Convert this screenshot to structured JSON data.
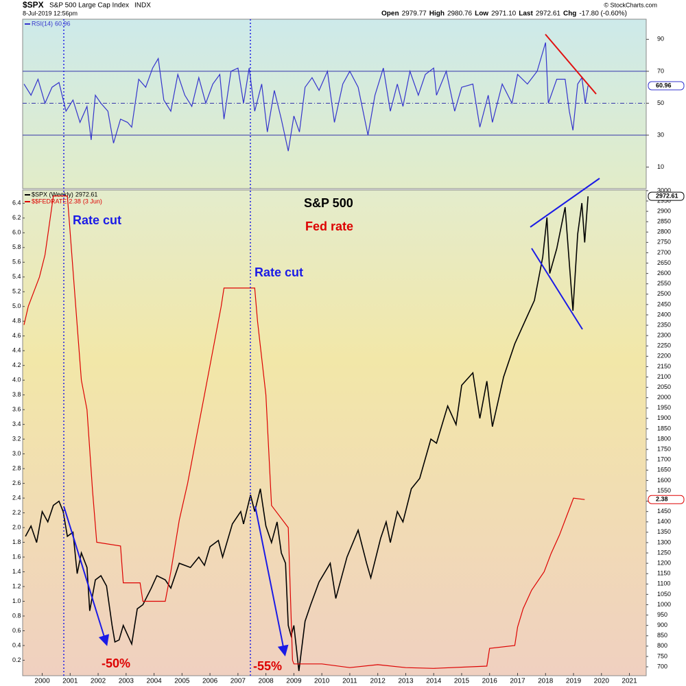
{
  "header": {
    "symbol": "$SPX",
    "name": "S&P 500 Large Cap Index",
    "exchange": "INDX",
    "date": "8-Jul-2019 12:56pm",
    "source": "© StockCharts.com",
    "quote": [
      "Open",
      "2979.77",
      "High",
      "2980.76",
      "Low",
      "2971.10",
      "Last",
      "2972.61",
      "Chg",
      "-17.80 (-0.60%)"
    ]
  },
  "chart_data": [
    {
      "type": "line",
      "xlim": [
        1999.3,
        2021.6
      ],
      "ylim": [
        -3.5,
        102.6
      ],
      "yticks": [
        10,
        30,
        50,
        70,
        90
      ],
      "hlines": [
        30,
        50,
        70
      ],
      "series": [
        {
          "name": "RSI(14)",
          "color": "#3333cc",
          "x": [
            1999.35,
            1999.6,
            1999.85,
            2000.1,
            2000.35,
            2000.6,
            2000.85,
            2001.1,
            2001.35,
            2001.6,
            2001.75,
            2001.9,
            2002.1,
            2002.35,
            2002.55,
            2002.8,
            2003.05,
            2003.2,
            2003.45,
            2003.7,
            2003.95,
            2004.15,
            2004.35,
            2004.6,
            2004.85,
            2005.1,
            2005.35,
            2005.6,
            2005.85,
            2006.1,
            2006.35,
            2006.5,
            2006.75,
            2007.0,
            2007.2,
            2007.4,
            2007.6,
            2007.85,
            2008.05,
            2008.3,
            2008.55,
            2008.8,
            2009.0,
            2009.2,
            2009.4,
            2009.65,
            2009.9,
            2010.2,
            2010.45,
            2010.75,
            2011.0,
            2011.3,
            2011.65,
            2011.9,
            2012.2,
            2012.45,
            2012.7,
            2012.9,
            2013.15,
            2013.45,
            2013.7,
            2014.0,
            2014.1,
            2014.45,
            2014.75,
            2015.0,
            2015.4,
            2015.65,
            2015.95,
            2016.1,
            2016.45,
            2016.8,
            2017.0,
            2017.35,
            2017.7,
            2018.0,
            2018.1,
            2018.4,
            2018.7,
            2018.85,
            2018.98,
            2019.15,
            2019.3,
            2019.42,
            2019.52
          ],
          "values": [
            62,
            55,
            65,
            50,
            60,
            63,
            45,
            52,
            38,
            48,
            27,
            55,
            50,
            45,
            25,
            40,
            38,
            35,
            65,
            60,
            72,
            78,
            52,
            45,
            68,
            55,
            48,
            66,
            50,
            62,
            68,
            40,
            70,
            72,
            50,
            72,
            45,
            62,
            32,
            58,
            40,
            20,
            42,
            32,
            60,
            66,
            58,
            70,
            38,
            62,
            70,
            60,
            30,
            55,
            72,
            45,
            62,
            48,
            70,
            55,
            68,
            72,
            55,
            70,
            45,
            60,
            62,
            35,
            55,
            38,
            62,
            50,
            68,
            62,
            70,
            88,
            50,
            65,
            65,
            45,
            33,
            62,
            66,
            50,
            60.96
          ]
        }
      ]
    },
    {
      "type": "line",
      "xlim": [
        1999.3,
        2021.6
      ],
      "ylim": [
        -0.01,
        6.58
      ],
      "y2lim": [
        657,
        3003
      ],
      "xticks": [
        2000,
        2001,
        2002,
        2003,
        2004,
        2005,
        2006,
        2007,
        2008,
        2009,
        2010,
        2011,
        2012,
        2013,
        2014,
        2015,
        2016,
        2017,
        2018,
        2019,
        2020,
        2021
      ],
      "yticks": [
        0.2,
        0.4,
        0.6,
        0.8,
        {
          "value": 1,
          "label": "1.0"
        },
        1.2,
        1.4,
        1.6,
        1.8,
        {
          "value": 2,
          "label": "2.0"
        },
        2.2,
        2.4,
        2.6,
        2.8,
        {
          "value": 3,
          "label": "3.0"
        },
        3.2,
        3.4,
        3.6,
        3.8,
        {
          "value": 4,
          "label": "4.0"
        },
        4.2,
        4.4,
        4.6,
        4.8,
        {
          "value": 5,
          "label": "5.0"
        },
        5.2,
        5.4,
        5.6,
        5.8,
        {
          "value": 6,
          "label": "6.0"
        },
        6.2,
        6.4
      ],
      "y2ticks": [
        700,
        750,
        800,
        850,
        900,
        950,
        1000,
        1050,
        1100,
        1150,
        1200,
        1250,
        1300,
        1350,
        1400,
        1450,
        1500,
        1550,
        1600,
        1650,
        1700,
        1750,
        1800,
        1850,
        1900,
        1950,
        2000,
        2050,
        2100,
        2150,
        2200,
        2250,
        2300,
        2350,
        2400,
        2450,
        2500,
        2550,
        2600,
        2650,
        2700,
        2750,
        2800,
        2850,
        2900,
        2950,
        3000
      ],
      "series": [
        {
          "name": "$SPX (Weekly)",
          "color": "#000000",
          "axis": "y2",
          "x": [
            1999.4,
            1999.6,
            1999.8,
            2000.0,
            2000.2,
            2000.4,
            2000.6,
            2000.75,
            2000.9,
            2001.1,
            2001.25,
            2001.4,
            2001.6,
            2001.7,
            2001.9,
            2002.1,
            2002.3,
            2002.5,
            2002.6,
            2002.75,
            2002.9,
            2003.1,
            2003.2,
            2003.4,
            2003.6,
            2003.9,
            2004.1,
            2004.4,
            2004.6,
            2004.9,
            2005.3,
            2005.6,
            2005.8,
            2006.0,
            2006.3,
            2006.45,
            2006.8,
            2007.1,
            2007.2,
            2007.45,
            2007.6,
            2007.8,
            2008.0,
            2008.2,
            2008.4,
            2008.55,
            2008.7,
            2008.8,
            2008.9,
            2009.0,
            2009.18,
            2009.4,
            2009.6,
            2009.9,
            2010.3,
            2010.5,
            2010.9,
            2011.3,
            2011.6,
            2011.75,
            2012.1,
            2012.3,
            2012.45,
            2012.7,
            2012.9,
            2013.2,
            2013.5,
            2013.9,
            2014.1,
            2014.5,
            2014.8,
            2015.0,
            2015.4,
            2015.65,
            2015.9,
            2016.1,
            2016.5,
            2016.9,
            2017.3,
            2017.6,
            2017.9,
            2018.05,
            2018.15,
            2018.4,
            2018.7,
            2018.85,
            2018.98,
            2019.15,
            2019.3,
            2019.4,
            2019.52
          ],
          "values": [
            1330,
            1380,
            1300,
            1450,
            1400,
            1480,
            1500,
            1450,
            1330,
            1350,
            1150,
            1250,
            1180,
            970,
            1120,
            1140,
            1090,
            900,
            820,
            830,
            900,
            840,
            810,
            980,
            1000,
            1080,
            1140,
            1120,
            1080,
            1200,
            1180,
            1230,
            1190,
            1280,
            1310,
            1230,
            1390,
            1450,
            1390,
            1530,
            1450,
            1560,
            1380,
            1300,
            1400,
            1250,
            1200,
            900,
            850,
            900,
            680,
            920,
            1000,
            1110,
            1200,
            1030,
            1230,
            1360,
            1200,
            1130,
            1320,
            1400,
            1300,
            1450,
            1400,
            1560,
            1610,
            1800,
            1780,
            1960,
            1870,
            2060,
            2120,
            1900,
            2080,
            1860,
            2100,
            2260,
            2380,
            2470,
            2680,
            2870,
            2600,
            2720,
            2920,
            2650,
            2420,
            2790,
            2940,
            2750,
            2972.61
          ]
        },
        {
          "name": "$$FEDRATE",
          "note": "(3 Jun)",
          "color": "#dd0000",
          "axis": "y",
          "x": [
            1999.35,
            1999.5,
            1999.9,
            2000.1,
            2000.4,
            2000.9,
            2001.0,
            2001.2,
            2001.4,
            2001.6,
            2001.8,
            2001.95,
            2002.8,
            2002.9,
            2003.5,
            2003.6,
            2004.4,
            2004.6,
            2004.9,
            2005.2,
            2005.5,
            2005.8,
            2006.1,
            2006.4,
            2006.5,
            2007.6,
            2007.7,
            2008.0,
            2008.2,
            2008.8,
            2008.95,
            2009.0,
            2010.0,
            2011.0,
            2012.0,
            2013.0,
            2014.0,
            2015.9,
            2016.0,
            2016.9,
            2017.0,
            2017.2,
            2017.5,
            2017.95,
            2018.2,
            2018.5,
            2018.75,
            2019.0,
            2019.4
          ],
          "values": [
            4.75,
            5.0,
            5.4,
            5.7,
            6.5,
            6.5,
            6.0,
            5.0,
            4.0,
            3.6,
            2.5,
            1.8,
            1.75,
            1.25,
            1.25,
            1.0,
            1.0,
            1.4,
            2.1,
            2.6,
            3.2,
            3.8,
            4.4,
            5.0,
            5.25,
            5.25,
            4.8,
            3.8,
            2.3,
            2.0,
            0.2,
            0.15,
            0.15,
            0.1,
            0.14,
            0.1,
            0.09,
            0.12,
            0.36,
            0.4,
            0.65,
            0.9,
            1.15,
            1.4,
            1.65,
            1.9,
            2.15,
            2.4,
            2.38
          ]
        }
      ],
      "annotations": [
        "S&P 500",
        "Fed rate",
        "Rate cut",
        "Rate cut",
        "-50%",
        "-55%"
      ]
    }
  ]
}
